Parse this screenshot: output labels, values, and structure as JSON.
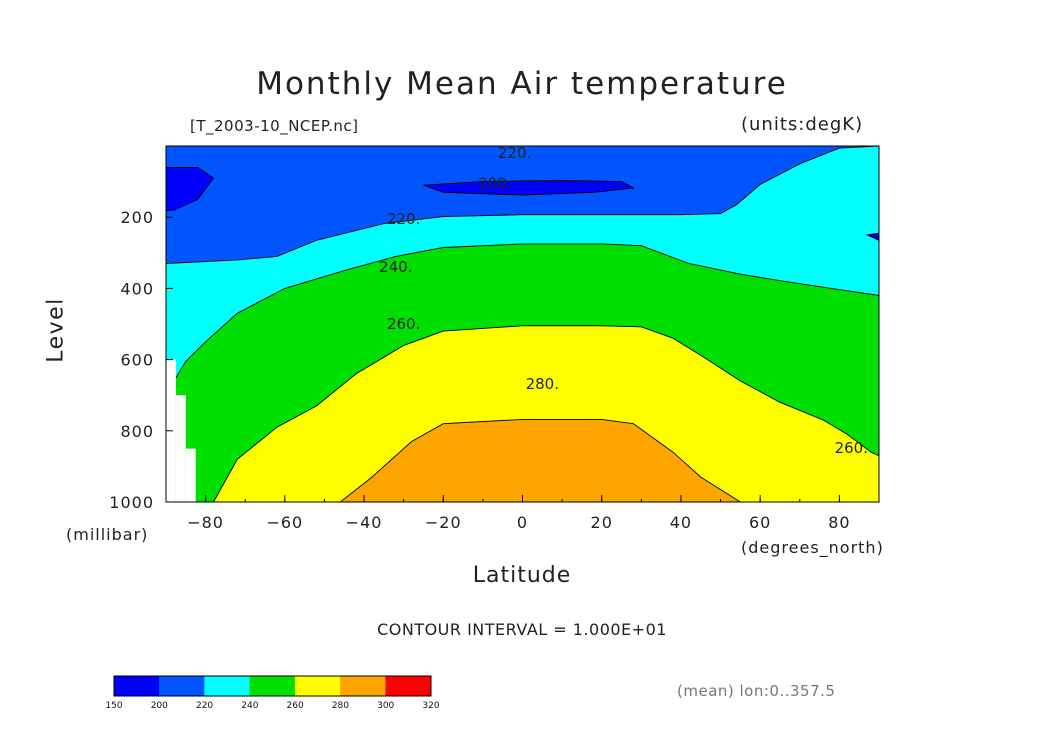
{
  "title": "Monthly Mean Air temperature",
  "source_file": "[T_2003-10_NCEP.nc]",
  "units_label": "(units:degK)",
  "x_axis_title": "Latitude",
  "y_axis_title": "Level",
  "y_units": "(millibar)",
  "x_units": "(degrees_north)",
  "contour_interval_text": "CONTOUR INTERVAL = 1.000E+01",
  "footer_text": "(mean) lon:0..357.5",
  "chart_data": {
    "type": "heatmap",
    "title": "Monthly Mean Air temperature",
    "xlabel": "Latitude",
    "ylabel": "Level",
    "x_units": "degrees_north",
    "y_units": "millibar",
    "value_units": "degK",
    "xlim": [
      -90,
      90
    ],
    "ylim": [
      0,
      1000
    ],
    "x_ticks": [
      -80,
      -60,
      -40,
      -20,
      0,
      20,
      40,
      60,
      80
    ],
    "y_ticks": [
      200,
      400,
      600,
      800,
      1000
    ],
    "contour_interval": 10,
    "contour_labels": [
      {
        "text": "220.",
        "x": -2,
        "y": 20
      },
      {
        "text": "200.",
        "x": -7,
        "y": 105
      },
      {
        "text": "220.",
        "x": -30,
        "y": 205
      },
      {
        "text": "240.",
        "x": -32,
        "y": 340
      },
      {
        "text": "260.",
        "x": -30,
        "y": 500
      },
      {
        "text": "280.",
        "x": 5,
        "y": 668
      },
      {
        "text": "260.",
        "x": 83,
        "y": 848
      }
    ],
    "colorbar": {
      "boundaries": [
        150,
        200,
        220,
        240,
        260,
        280,
        300,
        320
      ],
      "colors": [
        "#0000ff",
        "#0055ff",
        "#00ffff",
        "#00e000",
        "#ffff00",
        "#ffa500",
        "#ff0000"
      ]
    },
    "regions": [
      {
        "level": 200,
        "color": "#0055ff",
        "outline": [
          [
            -90,
            0
          ],
          [
            90,
            0
          ],
          [
            90,
            1000
          ],
          [
            -90,
            1000
          ]
        ]
      },
      {
        "level": 220,
        "color": "#00ffff",
        "outline": [
          [
            -90,
            330
          ],
          [
            -72,
            320
          ],
          [
            -62,
            310
          ],
          [
            -52,
            265
          ],
          [
            -35,
            218
          ],
          [
            -20,
            198
          ],
          [
            0,
            193
          ],
          [
            20,
            193
          ],
          [
            40,
            193
          ],
          [
            50,
            190
          ],
          [
            54,
            165
          ],
          [
            60,
            108
          ],
          [
            70,
            50
          ],
          [
            80,
            6
          ],
          [
            90,
            0
          ],
          [
            90,
            1000
          ],
          [
            -90,
            1000
          ]
        ]
      },
      {
        "level": 240,
        "color": "#00e000",
        "outline": [
          [
            -90,
            660
          ],
          [
            -88,
            660
          ],
          [
            -85,
            605
          ],
          [
            -80,
            550
          ],
          [
            -72,
            470
          ],
          [
            -60,
            400
          ],
          [
            -45,
            350
          ],
          [
            -32,
            310
          ],
          [
            -20,
            285
          ],
          [
            0,
            275
          ],
          [
            20,
            275
          ],
          [
            30,
            280
          ],
          [
            42,
            330
          ],
          [
            55,
            360
          ],
          [
            66,
            380
          ],
          [
            78,
            400
          ],
          [
            90,
            420
          ],
          [
            90,
            1000
          ],
          [
            -90,
            1000
          ]
        ]
      },
      {
        "level": 260,
        "color": "#ffff00",
        "outline": [
          [
            -78,
            1000
          ],
          [
            -72,
            880
          ],
          [
            -62,
            790
          ],
          [
            -52,
            730
          ],
          [
            -42,
            640
          ],
          [
            -30,
            560
          ],
          [
            -20,
            520
          ],
          [
            0,
            505
          ],
          [
            20,
            505
          ],
          [
            30,
            508
          ],
          [
            38,
            540
          ],
          [
            46,
            595
          ],
          [
            55,
            660
          ],
          [
            65,
            720
          ],
          [
            76,
            770
          ],
          [
            82,
            810
          ],
          [
            88,
            860
          ],
          [
            90,
            870
          ],
          [
            90,
            1000
          ]
        ]
      },
      {
        "level": 280,
        "color": "#ffa500",
        "outline": [
          [
            -46,
            1000
          ],
          [
            -38,
            930
          ],
          [
            -28,
            830
          ],
          [
            -20,
            780
          ],
          [
            0,
            768
          ],
          [
            20,
            768
          ],
          [
            28,
            780
          ],
          [
            38,
            860
          ],
          [
            45,
            930
          ],
          [
            55,
            1000
          ]
        ]
      },
      {
        "level": 200,
        "color": "#0000ff",
        "outline": [
          [
            -90,
            60
          ],
          [
            -82,
            60
          ],
          [
            -78,
            90
          ],
          [
            -82,
            150
          ],
          [
            -88,
            180
          ],
          [
            -90,
            182
          ]
        ]
      },
      {
        "level": 200,
        "color": "#0000ff",
        "outline": [
          [
            -25,
            110
          ],
          [
            -10,
            100
          ],
          [
            10,
            97
          ],
          [
            25,
            100
          ],
          [
            28,
            118
          ],
          [
            18,
            130
          ],
          [
            0,
            138
          ],
          [
            -20,
            130
          ]
        ]
      },
      {
        "level": 200,
        "color": "#0000ff",
        "outline": [
          [
            87,
            250
          ],
          [
            90,
            245
          ],
          [
            90,
            265
          ]
        ]
      }
    ]
  }
}
